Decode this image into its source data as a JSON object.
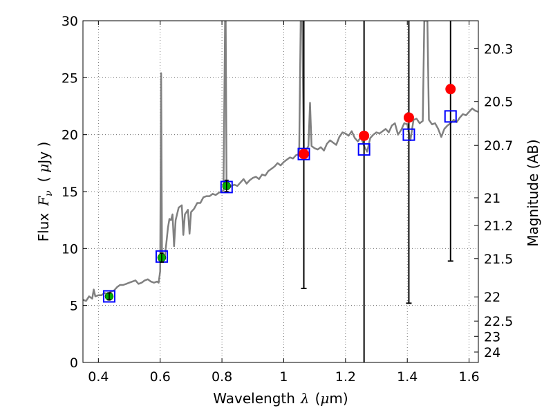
{
  "chart_data": {
    "type": "scatter",
    "xlabel_text": "Wavelength",
    "xlabel_symbol": "λ",
    "xlabel_unit_open": "(",
    "xlabel_unit_mu": "μ",
    "xlabel_unit_close": "m)",
    "ylabel_text": "Flux",
    "ylabel_symbol": "F",
    "ylabel_sub": "ν",
    "ylabel_unit_open": "(",
    "ylabel_unit_mu": "μ",
    "ylabel_unit_close": "Jy )",
    "y2label": "Magnitude (AB)",
    "xlim": [
      0.35,
      1.63
    ],
    "ylim": [
      0,
      30
    ],
    "grid": true,
    "x_ticks": [
      0.4,
      0.6,
      0.8,
      1.0,
      1.2,
      1.4,
      1.6
    ],
    "x_tick_labels": [
      "0.4",
      "0.6",
      "0.8",
      "1",
      "1.2",
      "1.4",
      "1.6"
    ],
    "y_ticks": [
      0,
      5,
      10,
      15,
      20,
      25,
      30
    ],
    "y_tick_labels": [
      "0",
      "5",
      "10",
      "15",
      "20",
      "25",
      "30"
    ],
    "mag_ticks": [
      20.3,
      20.5,
      20.7,
      21,
      21.2,
      21.5,
      22,
      22.5,
      23,
      24
    ],
    "mag_tick_labels": [
      "20.3",
      "20.5",
      "20.7",
      "21",
      "21.2",
      "21.5",
      "22",
      "22.5",
      "23",
      "24"
    ],
    "spectrum": {
      "color": "#808080",
      "points": [
        [
          0.35,
          5.5
        ],
        [
          0.36,
          5.4
        ],
        [
          0.37,
          5.8
        ],
        [
          0.38,
          5.6
        ],
        [
          0.385,
          6.4
        ],
        [
          0.39,
          5.8
        ],
        [
          0.4,
          5.9
        ],
        [
          0.41,
          5.9
        ],
        [
          0.42,
          6.1
        ],
        [
          0.43,
          6.0
        ],
        [
          0.44,
          6.2
        ],
        [
          0.45,
          6.3
        ],
        [
          0.46,
          6.6
        ],
        [
          0.47,
          6.8
        ],
        [
          0.48,
          6.8
        ],
        [
          0.49,
          6.9
        ],
        [
          0.5,
          7.0
        ],
        [
          0.51,
          7.1
        ],
        [
          0.52,
          7.2
        ],
        [
          0.53,
          6.9
        ],
        [
          0.54,
          7.0
        ],
        [
          0.55,
          7.2
        ],
        [
          0.56,
          7.3
        ],
        [
          0.57,
          7.1
        ],
        [
          0.58,
          7.0
        ],
        [
          0.59,
          7.1
        ],
        [
          0.595,
          7.0
        ],
        [
          0.6,
          8.0
        ],
        [
          0.603,
          25.4
        ],
        [
          0.606,
          9.0
        ],
        [
          0.61,
          9.2
        ],
        [
          0.615,
          9.3
        ],
        [
          0.62,
          10.5
        ],
        [
          0.625,
          11.8
        ],
        [
          0.63,
          12.6
        ],
        [
          0.635,
          12.5
        ],
        [
          0.64,
          13.0
        ],
        [
          0.645,
          10.2
        ],
        [
          0.65,
          12.5
        ],
        [
          0.66,
          13.6
        ],
        [
          0.67,
          13.8
        ],
        [
          0.675,
          11.2
        ],
        [
          0.68,
          13.0
        ],
        [
          0.69,
          13.4
        ],
        [
          0.695,
          11.3
        ],
        [
          0.7,
          13.2
        ],
        [
          0.71,
          13.5
        ],
        [
          0.72,
          14.0
        ],
        [
          0.73,
          14.0
        ],
        [
          0.74,
          14.5
        ],
        [
          0.75,
          14.6
        ],
        [
          0.76,
          14.6
        ],
        [
          0.77,
          14.8
        ],
        [
          0.78,
          14.7
        ],
        [
          0.79,
          14.9
        ],
        [
          0.8,
          15.0
        ],
        [
          0.805,
          15.1
        ],
        [
          0.81,
          30
        ],
        [
          0.812,
          30
        ],
        [
          0.815,
          15.3
        ],
        [
          0.82,
          15.2
        ],
        [
          0.83,
          15.5
        ],
        [
          0.84,
          15.6
        ],
        [
          0.85,
          15.5
        ],
        [
          0.86,
          15.8
        ],
        [
          0.87,
          16.1
        ],
        [
          0.88,
          15.7
        ],
        [
          0.89,
          16.0
        ],
        [
          0.9,
          16.2
        ],
        [
          0.91,
          16.3
        ],
        [
          0.92,
          16.1
        ],
        [
          0.93,
          16.5
        ],
        [
          0.94,
          16.4
        ],
        [
          0.95,
          16.8
        ],
        [
          0.96,
          17.0
        ],
        [
          0.97,
          17.2
        ],
        [
          0.98,
          17.5
        ],
        [
          0.99,
          17.3
        ],
        [
          1.0,
          17.6
        ],
        [
          1.01,
          17.8
        ],
        [
          1.02,
          18.0
        ],
        [
          1.03,
          17.9
        ],
        [
          1.04,
          18.2
        ],
        [
          1.05,
          18.3
        ],
        [
          1.055,
          30
        ],
        [
          1.06,
          30
        ],
        [
          1.065,
          18.6
        ],
        [
          1.07,
          18.5
        ],
        [
          1.08,
          19.0
        ],
        [
          1.085,
          22.8
        ],
        [
          1.09,
          19.0
        ],
        [
          1.1,
          18.8
        ],
        [
          1.11,
          18.7
        ],
        [
          1.12,
          18.9
        ],
        [
          1.13,
          18.6
        ],
        [
          1.14,
          19.2
        ],
        [
          1.15,
          19.5
        ],
        [
          1.16,
          19.3
        ],
        [
          1.17,
          19.1
        ],
        [
          1.18,
          19.8
        ],
        [
          1.19,
          20.2
        ],
        [
          1.2,
          20.1
        ],
        [
          1.21,
          19.9
        ],
        [
          1.22,
          20.3
        ],
        [
          1.23,
          19.7
        ],
        [
          1.24,
          19.4
        ],
        [
          1.25,
          19.8
        ],
        [
          1.26,
          19.0
        ],
        [
          1.27,
          18.5
        ],
        [
          1.28,
          19.7
        ],
        [
          1.29,
          20.0
        ],
        [
          1.3,
          20.2
        ],
        [
          1.31,
          20.1
        ],
        [
          1.32,
          20.3
        ],
        [
          1.33,
          20.5
        ],
        [
          1.34,
          20.2
        ],
        [
          1.35,
          20.8
        ],
        [
          1.36,
          21.0
        ],
        [
          1.37,
          20.0
        ],
        [
          1.38,
          20.4
        ],
        [
          1.39,
          21.0
        ],
        [
          1.4,
          20.9
        ],
        [
          1.41,
          19.5
        ],
        [
          1.42,
          21.3
        ],
        [
          1.43,
          21.4
        ],
        [
          1.44,
          21.0
        ],
        [
          1.45,
          21.2
        ],
        [
          1.455,
          30
        ],
        [
          1.465,
          30
        ],
        [
          1.47,
          21.3
        ],
        [
          1.48,
          20.9
        ],
        [
          1.49,
          21.0
        ],
        [
          1.5,
          20.5
        ],
        [
          1.51,
          19.8
        ],
        [
          1.52,
          20.5
        ],
        [
          1.53,
          20.8
        ],
        [
          1.54,
          21.0
        ],
        [
          1.55,
          21.3
        ],
        [
          1.56,
          21.1
        ],
        [
          1.57,
          21.5
        ],
        [
          1.58,
          21.8
        ],
        [
          1.59,
          21.7
        ],
        [
          1.6,
          22.0
        ],
        [
          1.61,
          22.3
        ],
        [
          1.62,
          22.1
        ],
        [
          1.63,
          22.0
        ]
      ]
    },
    "model_photometry": {
      "color": "#0000ff",
      "points": [
        [
          0.435,
          5.8
        ],
        [
          0.605,
          9.3
        ],
        [
          0.815,
          15.4
        ],
        [
          1.065,
          18.3
        ],
        [
          1.26,
          18.7
        ],
        [
          1.405,
          20.0
        ],
        [
          1.54,
          21.6
        ]
      ]
    },
    "observed_photometry": {
      "color": "#00aa00",
      "points": [
        [
          0.435,
          5.8,
          0.3
        ],
        [
          0.605,
          9.2,
          0.4
        ],
        [
          0.815,
          15.5,
          0.5
        ]
      ]
    },
    "upper_points": {
      "color": "#ff0000",
      "points": [
        [
          1.065,
          18.3,
          6.5,
          30.0
        ],
        [
          1.26,
          19.9,
          0.0,
          30.0
        ],
        [
          1.405,
          21.5,
          5.2,
          30.0
        ],
        [
          1.54,
          24.0,
          8.9,
          30.0
        ]
      ]
    }
  }
}
